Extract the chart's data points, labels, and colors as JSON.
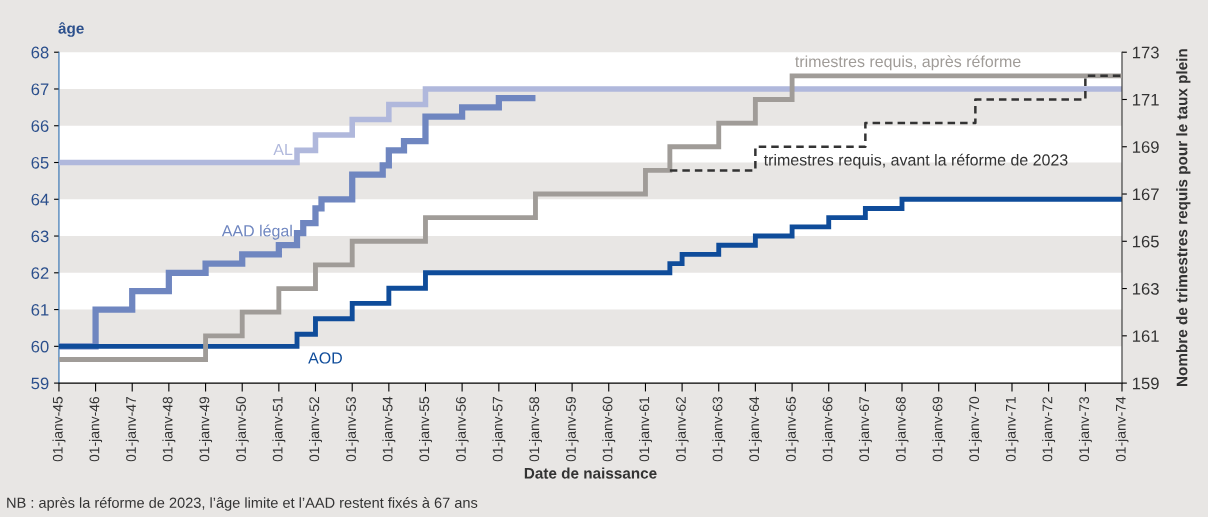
{
  "chart_data": {
    "type": "step",
    "ylabel": "âge",
    "y2label": "Nombre de trimestres requis pour le taux plein",
    "xlabel": "Date de naissance",
    "annotations": [
      "NB : après la réforme de 2023, l’âge limite et l’AAD restent fixés à 67 ans"
    ],
    "xlim": [
      "1945-01-01",
      "1974-01-01"
    ],
    "xticks": [
      {
        "value": "1945-01-01",
        "label": "01-janv-45"
      },
      {
        "value": "1946-01-01",
        "label": "01-janv-46"
      },
      {
        "value": "1947-01-01",
        "label": "01-janv-47"
      },
      {
        "value": "1948-01-01",
        "label": "01-janv-48"
      },
      {
        "value": "1949-01-01",
        "label": "01-janv-49"
      },
      {
        "value": "1950-01-01",
        "label": "01-janv-50"
      },
      {
        "value": "1951-01-01",
        "label": "01-janv-51"
      },
      {
        "value": "1952-01-01",
        "label": "01-janv-52"
      },
      {
        "value": "1953-01-01",
        "label": "01-janv-53"
      },
      {
        "value": "1954-01-01",
        "label": "01-janv-54"
      },
      {
        "value": "1955-01-01",
        "label": "01-janv-55"
      },
      {
        "value": "1956-01-01",
        "label": "01-janv-56"
      },
      {
        "value": "1957-01-01",
        "label": "01-janv-57"
      },
      {
        "value": "1958-01-01",
        "label": "01-janv-58"
      },
      {
        "value": "1959-01-01",
        "label": "01-janv-59"
      },
      {
        "value": "1960-01-01",
        "label": "01-janv-60"
      },
      {
        "value": "1961-01-01",
        "label": "01-janv-61"
      },
      {
        "value": "1962-01-01",
        "label": "01-janv-62"
      },
      {
        "value": "1963-01-01",
        "label": "01-janv-63"
      },
      {
        "value": "1964-01-01",
        "label": "01-janv-64"
      },
      {
        "value": "1965-01-01",
        "label": "01-janv-65"
      },
      {
        "value": "1966-01-01",
        "label": "01-janv-66"
      },
      {
        "value": "1967-01-01",
        "label": "01-janv-67"
      },
      {
        "value": "1968-01-01",
        "label": "01-janv-68"
      },
      {
        "value": "1969-01-01",
        "label": "01-janv-69"
      },
      {
        "value": "1970-01-01",
        "label": "01-janv-70"
      },
      {
        "value": "1971-01-01",
        "label": "01-janv-71"
      },
      {
        "value": "1972-01-01",
        "label": "01-janv-72"
      },
      {
        "value": "1973-01-01",
        "label": "01-janv-73"
      },
      {
        "value": "1974-01-01",
        "label": "01-janv-74"
      }
    ],
    "ylim": [
      59,
      68
    ],
    "yticks": [
      59,
      60,
      61,
      62,
      63,
      64,
      65,
      66,
      67,
      68
    ],
    "y2lim": [
      159,
      173
    ],
    "y2ticks": [
      159,
      161,
      163,
      165,
      167,
      169,
      171,
      173
    ],
    "grid": false,
    "legend": false,
    "bands": [
      {
        "axis": "y",
        "from": 60,
        "to": 61,
        "color": "#e8e6e4"
      },
      {
        "axis": "y",
        "from": 62,
        "to": 63,
        "color": "#e8e6e4"
      },
      {
        "axis": "y",
        "from": 64,
        "to": 65,
        "color": "#e8e6e4"
      },
      {
        "axis": "y",
        "from": 66,
        "to": 67,
        "color": "#e8e6e4"
      }
    ],
    "series": [
      {
        "name": "AL",
        "color": "#b0b8dc",
        "line_style": "solid",
        "x": [
          "1945-01-01",
          "1951-07-01",
          "1952-01-01",
          "1953-01-01",
          "1954-01-01",
          "1955-01-01",
          "1974-01-01"
        ],
        "values": [
          65,
          65.33,
          65.75,
          66.17,
          66.58,
          67,
          67
        ]
      },
      {
        "name": "AAD légal",
        "color": "#6f86c0",
        "line_style": "solid",
        "x": [
          "1945-01-01",
          "1946-01-01",
          "1947-01-01",
          "1948-01-01",
          "1949-01-01",
          "1950-01-01",
          "1951-01-01",
          "1951-07-01",
          "1951-09-01",
          "1952-01-01",
          "1952-03-01",
          "1953-01-01",
          "1953-11-01",
          "1954-01-01",
          "1954-06-01",
          "1955-01-01",
          "1956-01-01",
          "1957-01-01",
          "1958-01-01"
        ],
        "values": [
          60,
          61,
          61.5,
          62,
          62.25,
          62.5,
          62.75,
          63.08,
          63.35,
          63.75,
          64,
          64.67,
          64.92,
          65.33,
          65.58,
          66.25,
          66.5,
          66.75,
          66.75
        ]
      },
      {
        "name": "trimestres requis, après réforme",
        "color": "#a09c98",
        "axis": "y2",
        "line_style": "solid",
        "x": [
          "1945-01-01",
          "1949-01-01",
          "1950-01-01",
          "1951-01-01",
          "1952-01-01",
          "1953-01-01",
          "1955-01-01",
          "1958-01-01",
          "1961-01-01",
          "1961-09-01",
          "1963-01-01",
          "1964-01-01",
          "1965-01-01",
          "1974-01-01"
        ],
        "values": [
          160,
          161,
          162,
          163,
          164,
          165,
          166,
          167,
          168,
          169,
          170,
          171,
          172,
          172
        ]
      },
      {
        "name": "trimestres requis, avant la réforme de 2023",
        "color": "#333333",
        "axis": "y2",
        "line_style": "dashed",
        "x": [
          "1961-09-01",
          "1964-01-01",
          "1967-01-01",
          "1970-01-01",
          "1973-01-01",
          "1974-01-01"
        ],
        "values": [
          168,
          169,
          170,
          171,
          172,
          172
        ]
      },
      {
        "name": "AOD",
        "color": "#0f4c9a",
        "line_style": "solid",
        "x": [
          "1945-01-01",
          "1951-07-01",
          "1952-01-01",
          "1953-01-01",
          "1954-01-01",
          "1955-01-01",
          "1961-09-01",
          "1962-01-01",
          "1963-01-01",
          "1964-01-01",
          "1965-01-01",
          "1966-01-01",
          "1967-01-01",
          "1968-01-01",
          "1974-01-01"
        ],
        "values": [
          60,
          60.33,
          60.75,
          61.17,
          61.58,
          62,
          62.25,
          62.5,
          62.75,
          63,
          63.25,
          63.5,
          63.75,
          64,
          64
        ]
      }
    ]
  }
}
